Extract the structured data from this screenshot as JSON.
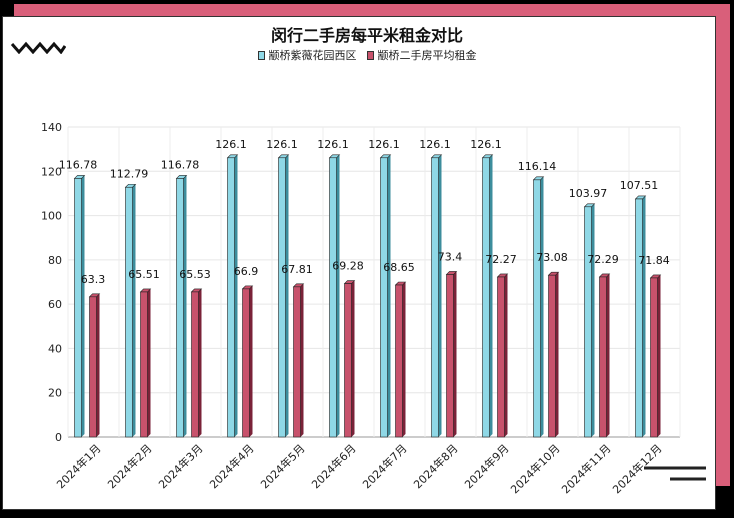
{
  "colors": {
    "series1": "#8fd8e6",
    "series1_dark": "#3c8d9c",
    "series2": "#c8526c",
    "series2_dark": "#7a2238",
    "accent": "#d95f7a"
  },
  "chart_data": {
    "type": "bar",
    "title": "闵行二手房每平米租金对比",
    "categories": [
      "2024年1月",
      "2024年2月",
      "2024年3月",
      "2024年4月",
      "2024年5月",
      "2024年6月",
      "2024年7月",
      "2024年8月",
      "2024年9月",
      "2024年10月",
      "2024年11月",
      "2024年12月"
    ],
    "series": [
      {
        "name": "颛桥紫薇花园西区",
        "values": [
          116.78,
          112.79,
          116.78,
          126.1,
          126.1,
          126.1,
          126.1,
          126.1,
          126.1,
          116.14,
          103.97,
          107.51
        ]
      },
      {
        "name": "颛桥二手房平均租金",
        "values": [
          63.3,
          65.51,
          65.53,
          66.9,
          67.81,
          69.28,
          68.65,
          73.4,
          72.27,
          73.08,
          72.29,
          71.84
        ]
      }
    ],
    "ylim": [
      0,
      140
    ],
    "yticks": [
      0,
      20,
      40,
      60,
      80,
      100,
      120,
      140
    ],
    "grid": true,
    "legend_position": "top-center"
  }
}
